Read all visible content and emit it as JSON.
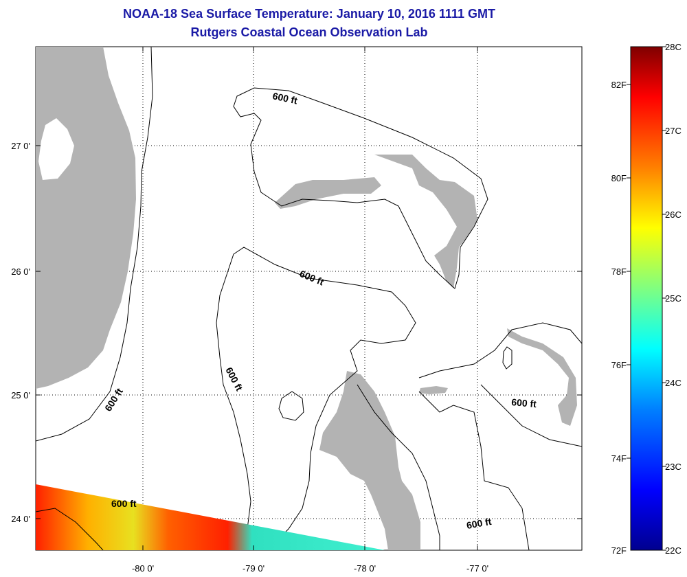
{
  "title": {
    "line1": "NOAA-18 Sea Surface Temperature:  January 10, 2016 1111 GMT",
    "line2": "Rutgers Coastal Ocean Observation Lab"
  },
  "map": {
    "x_ticks": [
      "-80 0'",
      "-79 0'",
      "-78 0'",
      "-77 0'"
    ],
    "y_ticks": [
      "27 0'",
      "26 0'",
      "25 0'",
      "24 0'"
    ],
    "contour_labels": [
      "600 ft",
      "600 ft",
      "600 ft",
      "600 ft",
      "600 ft",
      "600 ft"
    ]
  },
  "colorbar": {
    "celsius_labels": [
      "28C",
      "27C",
      "26C",
      "25C",
      "24C",
      "23C",
      "22C"
    ],
    "fahrenheit_labels": [
      "82F",
      "80F",
      "78F",
      "76F",
      "74F",
      "72F"
    ],
    "colors": [
      "#7f0000",
      "#ff0000",
      "#ff8000",
      "#ffff00",
      "#80ff80",
      "#00ffff",
      "#0080ff",
      "#0000ff",
      "#00008f"
    ]
  },
  "colors": {
    "title": "#1a1aa6",
    "land": "#b3b3b3"
  }
}
